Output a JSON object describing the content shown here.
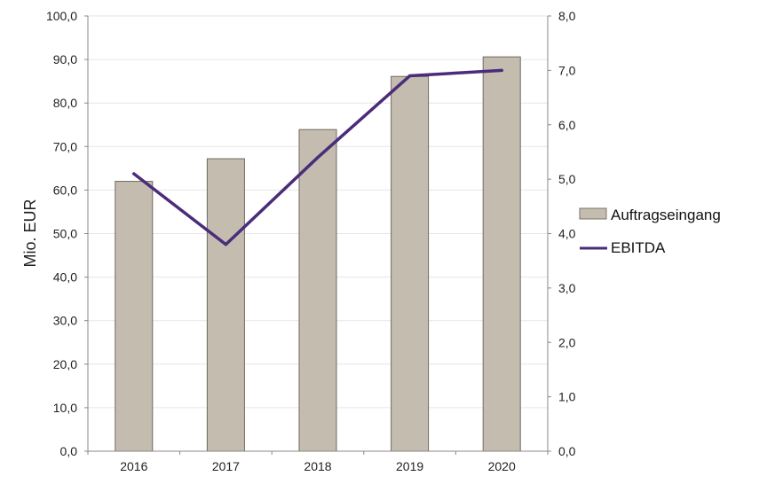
{
  "chart_data": {
    "type": "bar",
    "categories": [
      "2016",
      "2017",
      "2018",
      "2019",
      "2020"
    ],
    "series": [
      {
        "name": "Auftragseingang",
        "type": "bar",
        "axis": "left",
        "values": [
          62.0,
          67.2,
          73.9,
          86.1,
          90.6
        ],
        "color": "#c4bcaf"
      },
      {
        "name": "EBITDA",
        "type": "line",
        "axis": "right",
        "values": [
          5.1,
          3.8,
          5.4,
          6.9,
          7.0
        ],
        "color": "#4b2c7a"
      }
    ],
    "ylabel": "Mio. EUR",
    "ylim": [
      0,
      100
    ],
    "y2lim": [
      0,
      8
    ],
    "yticks": [
      "0,0",
      "10,0",
      "20,0",
      "30,0",
      "40,0",
      "50,0",
      "60,0",
      "70,0",
      "80,0",
      "90,0",
      "100,0"
    ],
    "y2ticks": [
      "0,0",
      "1,0",
      "2,0",
      "3,0",
      "4,0",
      "5,0",
      "6,0",
      "7,0",
      "8,0"
    ],
    "grid": true,
    "legend": "right"
  }
}
